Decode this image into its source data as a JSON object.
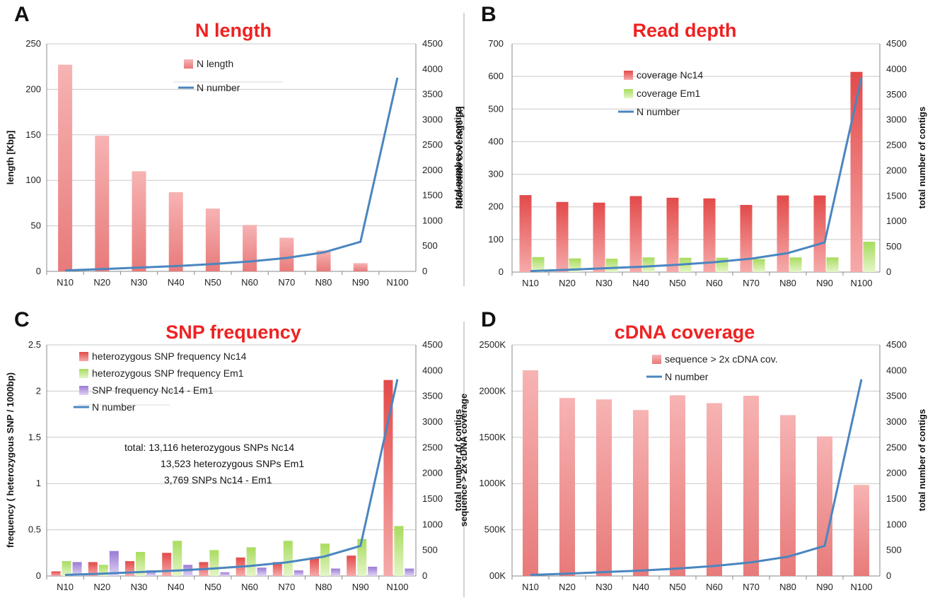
{
  "chart_data": [
    {
      "panel": "A",
      "type": "bar",
      "title": "N length",
      "categories": [
        "N10",
        "N20",
        "N30",
        "N40",
        "N50",
        "N60",
        "N70",
        "N80",
        "N90",
        "N100"
      ],
      "ylabel": "length [Kbp]",
      "ylim": [
        0,
        250
      ],
      "yticks": [
        "0",
        "50",
        "100",
        "150",
        "200",
        "250"
      ],
      "y2label": "total number of contigs",
      "y2lim": [
        0,
        4500
      ],
      "y2ticks": [
        "0",
        "500",
        "1000",
        "1500",
        "2000",
        "2500",
        "3000",
        "3500",
        "4000",
        "4500"
      ],
      "grid": true,
      "legend_position": "top-center",
      "bar_series": [
        {
          "name": "N length",
          "color": "#f4a6a6",
          "values": [
            227,
            149,
            110,
            87,
            69,
            51,
            37,
            23,
            9,
            0
          ]
        }
      ],
      "line_series": [
        {
          "name": "N number",
          "color": "#4a86c0",
          "axis": "right",
          "values": [
            20,
            45,
            75,
            105,
            145,
            195,
            265,
            375,
            585,
            3830
          ]
        }
      ]
    },
    {
      "panel": "B",
      "type": "bar",
      "title": "Read depth",
      "categories": [
        "N10",
        "N20",
        "N30",
        "N40",
        "N50",
        "N60",
        "N70",
        "N80",
        "N90",
        "N100"
      ],
      "ylabel": "nucleotide coverage [x]",
      "ylim": [
        0,
        700
      ],
      "yticks": [
        "0",
        "100",
        "200",
        "300",
        "400",
        "500",
        "600",
        "700"
      ],
      "y2label": "total number of contigs",
      "y2lim": [
        0,
        4500
      ],
      "y2ticks": [
        "0",
        "500",
        "1000",
        "1500",
        "2000",
        "2500",
        "3000",
        "3500",
        "4000",
        "4500"
      ],
      "grid": true,
      "legend_position": "top-center",
      "bar_series": [
        {
          "name": "coverage Nc14",
          "color": "#e56363",
          "values": [
            236,
            215,
            213,
            233,
            228,
            226,
            206,
            235,
            235,
            614
          ]
        },
        {
          "name": "coverage Em1",
          "color": "#b8e27a",
          "values": [
            46,
            42,
            41,
            45,
            44,
            44,
            40,
            45,
            45,
            93
          ]
        }
      ],
      "line_series": [
        {
          "name": "N number",
          "color": "#4a86c0",
          "axis": "right",
          "values": [
            20,
            45,
            75,
            105,
            145,
            195,
            265,
            375,
            585,
            3830
          ]
        }
      ]
    },
    {
      "panel": "C",
      "type": "bar",
      "title": "SNP frequency",
      "categories": [
        "N10",
        "N20",
        "N30",
        "N40",
        "N50",
        "N60",
        "N70",
        "N80",
        "N90",
        "N100"
      ],
      "ylabel": "frequency ( heterozygous SNP / 1000bp)",
      "ylim": [
        0,
        2.5
      ],
      "yticks": [
        "0",
        "0.5",
        "1",
        "1.5",
        "2",
        "2.5"
      ],
      "y2label": "total number of contigs",
      "y2lim": [
        0,
        4500
      ],
      "y2ticks": [
        "0",
        "500",
        "1000",
        "1500",
        "2000",
        "2500",
        "3000",
        "3500",
        "4000",
        "4500"
      ],
      "grid": true,
      "legend_position": "top-left",
      "bar_series": [
        {
          "name": "heterozygous SNP frequency Nc14",
          "color": "#e56363",
          "values": [
            0.05,
            0.15,
            0.16,
            0.25,
            0.15,
            0.2,
            0.15,
            0.2,
            0.22,
            2.12
          ]
        },
        {
          "name": "heterozygous SNP frequency Em1",
          "color": "#b8e27a",
          "values": [
            0.16,
            0.12,
            0.26,
            0.38,
            0.28,
            0.31,
            0.38,
            0.35,
            0.4,
            0.54
          ]
        },
        {
          "name": "SNP frequency Nc14 - Em1",
          "color": "#a98bd8",
          "values": [
            0.15,
            0.27,
            0.06,
            0.12,
            0.04,
            0.09,
            0.06,
            0.08,
            0.1,
            0.08
          ]
        }
      ],
      "line_series": [
        {
          "name": "N number",
          "color": "#4a86c0",
          "axis": "right",
          "values": [
            20,
            45,
            75,
            105,
            145,
            195,
            265,
            375,
            585,
            3830
          ]
        }
      ],
      "annotations": [
        "total: 13,116 heterozygous SNPs Nc14",
        "13,523 heterozygous SNPs Em1",
        "3,769 SNPs Nc14 - Em1"
      ]
    },
    {
      "panel": "D",
      "type": "bar",
      "title": "cDNA coverage",
      "categories": [
        "N10",
        "N20",
        "N30",
        "N40",
        "N50",
        "N60",
        "N70",
        "N80",
        "N90",
        "N100"
      ],
      "ylabel": "sequence > 2x cDNA coverage",
      "ylim": [
        0,
        2500000
      ],
      "yticks": [
        "00K",
        "500K",
        "1000K",
        "1500K",
        "2000K",
        "2500K"
      ],
      "y2label": "total number of contigs",
      "y2lim": [
        0,
        4500
      ],
      "y2ticks": [
        "0",
        "500",
        "1000",
        "1500",
        "2000",
        "2500",
        "3000",
        "3500",
        "4000",
        "4500"
      ],
      "grid": true,
      "legend_position": "top-center",
      "bar_series": [
        {
          "name": "sequence > 2x cDNA cov.",
          "color": "#f4a6a6",
          "values": [
            2225000,
            1925000,
            1910000,
            1795000,
            1955000,
            1870000,
            1950000,
            1740000,
            1510000,
            985000
          ]
        }
      ],
      "line_series": [
        {
          "name": "N number",
          "color": "#4a86c0",
          "axis": "right",
          "values": [
            20,
            45,
            75,
            105,
            145,
            195,
            265,
            375,
            585,
            3830
          ]
        }
      ]
    }
  ]
}
